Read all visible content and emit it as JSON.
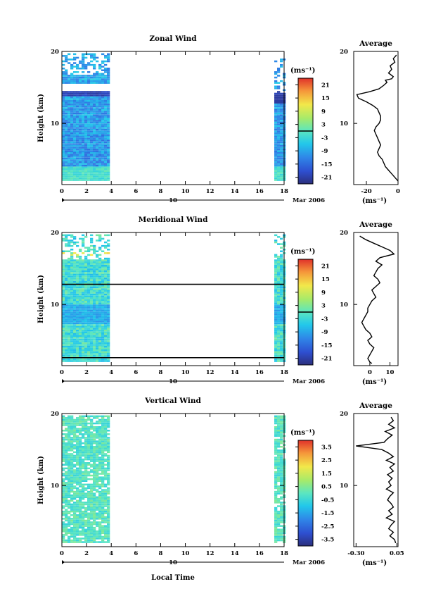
{
  "figure": {
    "shared_x": {
      "label": "Local Time",
      "ticks": [
        0,
        2,
        4,
        6,
        8,
        10,
        12,
        14,
        16,
        18
      ],
      "day_label": "10",
      "month_label": "Mar 2006"
    },
    "ylabel": "Height (km)",
    "y_ticks": [
      10,
      20
    ],
    "colorbar_unit": "(ms⁻¹)",
    "average_title": "Average",
    "average_xunit": "(ms⁻¹)"
  },
  "chart_data": [
    {
      "type": "heatmap",
      "id": "zonal",
      "title": "Zonal Wind",
      "xlim": [
        0,
        18
      ],
      "ylim": [
        1.5,
        20
      ],
      "data_columns_hours": [
        [
          0,
          3.8
        ],
        [
          17.2,
          18
        ]
      ],
      "colorbar_ticks": [
        "21",
        "15",
        "9",
        "3",
        "-3",
        "-9",
        "-15",
        "-21"
      ],
      "colorbar_range": [
        -24,
        24
      ],
      "zero_line": true,
      "average": {
        "xlim": [
          -28,
          0
        ],
        "xticks": [
          "-20",
          "0"
        ],
        "x": [
          -1,
          -3,
          -2,
          -5,
          -4,
          -6,
          -3,
          -4,
          -8,
          -7,
          -9,
          -12,
          -18,
          -26,
          -25,
          -20,
          -16,
          -13,
          -12,
          -11,
          -11,
          -12,
          -14,
          -15,
          -14,
          -13,
          -12,
          -11,
          -12,
          -13,
          -12,
          -10,
          -9,
          -8,
          -6,
          -4,
          -2,
          0
        ],
        "y": [
          19.5,
          19,
          18.5,
          18,
          17.5,
          17,
          16.5,
          16.2,
          16,
          15.7,
          15.3,
          14.8,
          14.4,
          14,
          13.5,
          13,
          12.5,
          12,
          11.5,
          11,
          10.5,
          10,
          9.5,
          9,
          8.5,
          8,
          7.5,
          7,
          6.5,
          6,
          5.5,
          5,
          4.5,
          4,
          3.5,
          3,
          2.5,
          2
        ]
      }
    },
    {
      "type": "heatmap",
      "id": "meridional",
      "title": "Meridional Wind",
      "xlim": [
        0,
        18
      ],
      "ylim": [
        1.5,
        20
      ],
      "data_columns_hours": [
        [
          0,
          3.8
        ],
        [
          17.2,
          18
        ]
      ],
      "colorbar_ticks": [
        "21",
        "15",
        "9",
        "3",
        "-3",
        "-9",
        "-15",
        "-21"
      ],
      "colorbar_range": [
        -24,
        24
      ],
      "zero_line": true,
      "contour_lines_km": [
        12.8,
        2.6
      ],
      "average": {
        "xlim": [
          -8,
          14
        ],
        "xticks": [
          "0",
          "10"
        ],
        "x": [
          -5,
          -2,
          2,
          6,
          10,
          12,
          5,
          3,
          6,
          4,
          3,
          2,
          4,
          5,
          3,
          1,
          2,
          3,
          1,
          0,
          -1,
          -1,
          -2,
          -3,
          -4,
          -3,
          -2,
          0,
          1,
          -1,
          0,
          2,
          1,
          0,
          -1,
          0,
          1
        ],
        "y": [
          19.5,
          19,
          18.5,
          18,
          17.5,
          17,
          16.5,
          16,
          15.5,
          15,
          14.5,
          14,
          13.5,
          13,
          12.5,
          12,
          11.5,
          11,
          10.5,
          10,
          9.5,
          9,
          8.5,
          8,
          7.5,
          7,
          6.5,
          6,
          5.5,
          5,
          4.5,
          4,
          3.5,
          3,
          2.5,
          2,
          1.8
        ]
      }
    },
    {
      "type": "heatmap",
      "id": "vertical",
      "title": "Vertical Wind",
      "xlim": [
        0,
        18
      ],
      "ylim": [
        1.5,
        20
      ],
      "data_columns_hours": [
        [
          0,
          3.8
        ],
        [
          17.2,
          18
        ]
      ],
      "colorbar_ticks": [
        "3.5",
        "2.5",
        "1.5",
        "0.5",
        "-0.5",
        "-1.5",
        "-2.5",
        "-3.5"
      ],
      "colorbar_range": [
        -4,
        4
      ],
      "zero_line": false,
      "average": {
        "xlim": [
          -0.32,
          0.06
        ],
        "xticks": [
          "-0.30",
          "0.05"
        ],
        "x": [
          0.0,
          0.02,
          -0.02,
          0.03,
          -0.05,
          0.01,
          -0.03,
          -0.06,
          -0.3,
          -0.08,
          -0.02,
          0.02,
          -0.04,
          0.03,
          -0.01,
          0.02,
          -0.03,
          0.01,
          -0.02,
          0.0,
          -0.04,
          0.02,
          -0.01,
          -0.03,
          0.0,
          0.02,
          -0.02,
          0.01,
          -0.04,
          0.03,
          0.0,
          -0.02,
          0.02,
          -0.01,
          0.03,
          0.04
        ],
        "y": [
          19.5,
          19,
          18.5,
          18,
          17.5,
          17,
          16.5,
          16,
          15.5,
          15,
          14.5,
          14,
          13.5,
          13,
          12.5,
          12,
          11.5,
          11,
          10.5,
          10,
          9.5,
          9,
          8.5,
          8,
          7.5,
          7,
          6.5,
          6,
          5.5,
          5,
          4.5,
          4,
          3.5,
          3,
          2.5,
          2
        ]
      }
    }
  ]
}
